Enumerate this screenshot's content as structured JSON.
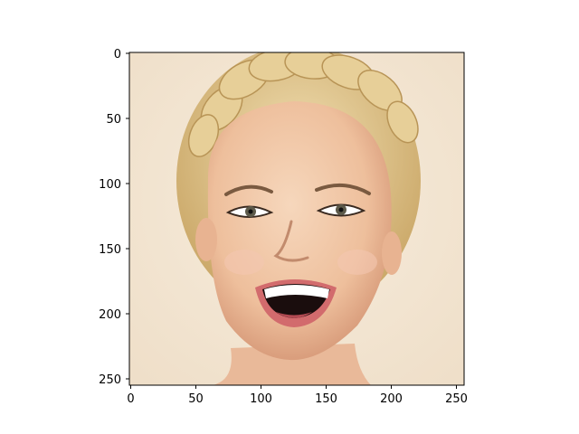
{
  "figure": {
    "image": {
      "subject": "face-portrait",
      "description": "Close-up of a smiling blonde woman with braided hair on a cream background"
    },
    "x_axis": {
      "range": [
        0,
        256
      ],
      "tick_values": [
        0,
        50,
        100,
        150,
        200,
        250
      ]
    },
    "y_axis": {
      "range": [
        0,
        256
      ],
      "tick_values": [
        0,
        50,
        100,
        150,
        200,
        250
      ]
    },
    "grid": false
  },
  "colors": {
    "background": "#f3e6d4",
    "hair": "#d9bf86",
    "skin": "#f0c8a8",
    "lips": "#c8555a"
  }
}
